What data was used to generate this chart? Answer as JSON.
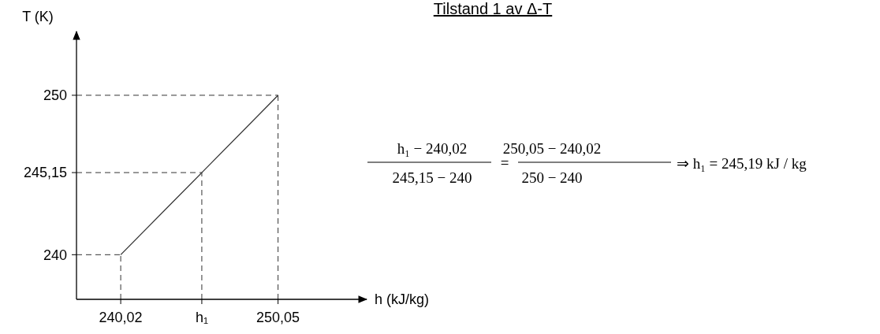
{
  "chart_data": {
    "type": "line",
    "title": "Tilstand 1 av Δ-T",
    "xlabel": "h (kJ/kg)",
    "ylabel": "T (K)",
    "x": [
      240.02,
      245.19,
      250.05
    ],
    "series": [
      {
        "color": "#333333",
        "values": [
          240,
          245.15,
          250
        ]
      }
    ],
    "xlim": [
      237.2,
      255.7
    ],
    "ylim": [
      237.2,
      254
    ],
    "xticks": [
      {
        "value": 240.02,
        "label": "240,02"
      },
      {
        "value": 245.19,
        "label": "h₁"
      },
      {
        "value": 250.05,
        "label": "250,05"
      }
    ],
    "yticks": [
      240,
      {
        "value": 245.15,
        "label": "245,15"
      },
      250
    ],
    "ref_lines": [
      {
        "axis": "x",
        "value": 240.02,
        "line_style": "dashed"
      },
      {
        "axis": "x",
        "value": 245.19,
        "line_style": "dashed"
      },
      {
        "axis": "x",
        "value": 250.05,
        "line_style": "dashed"
      },
      {
        "axis": "y",
        "value": 240,
        "line_style": "dashed"
      },
      {
        "axis": "y",
        "value": 245.15,
        "line_style": "dashed"
      },
      {
        "axis": "y",
        "value": 250,
        "line_style": "dashed"
      }
    ],
    "annotations": [
      "h₁ − 240,02",
      "245,15 − 240",
      "=",
      "250,05 − 240,02",
      "250 − 240",
      "⇒ h₁ = 245,19 kJ / kg"
    ],
    "grid": false,
    "marker": "none",
    "line_style": "solid"
  }
}
